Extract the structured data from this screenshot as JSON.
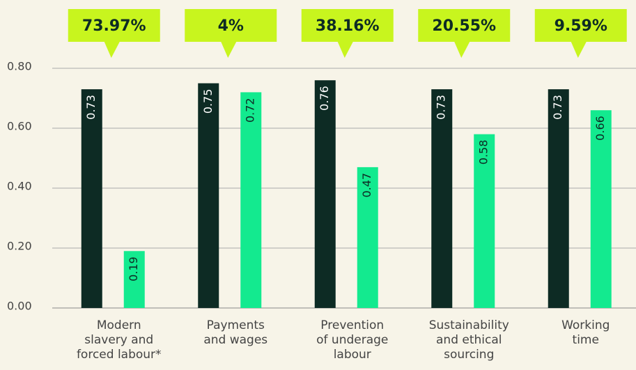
{
  "chart_data": {
    "type": "bar",
    "categories": [
      [
        "Modern",
        "slavery and",
        "forced labour*"
      ],
      [
        "Payments",
        "and wages"
      ],
      [
        "Prevention",
        "of underage",
        "labour"
      ],
      [
        "Sustainability",
        "and ethical",
        "sourcing"
      ],
      [
        "Working",
        "time"
      ]
    ],
    "series": [
      {
        "color": "#0d2b24",
        "values": [
          0.73,
          0.75,
          0.76,
          0.73,
          0.73
        ]
      },
      {
        "color": "#13ea8f",
        "values": [
          0.19,
          0.72,
          0.47,
          0.58,
          0.66
        ]
      }
    ],
    "annotations": [
      "73.97%",
      "4%",
      "38.16%",
      "20.55%",
      "9.59%"
    ],
    "annotation_color": "#c8f51e",
    "ylim": [
      0,
      0.8
    ],
    "yticks": [
      {
        "value": 0,
        "label": "0.00"
      },
      {
        "value": 0.2,
        "label": "0.20"
      },
      {
        "value": 0.4,
        "label": "0.40"
      },
      {
        "value": 0.6,
        "label": "0.60"
      },
      {
        "value": 0.8,
        "label": "0.80"
      }
    ],
    "grid": true
  }
}
